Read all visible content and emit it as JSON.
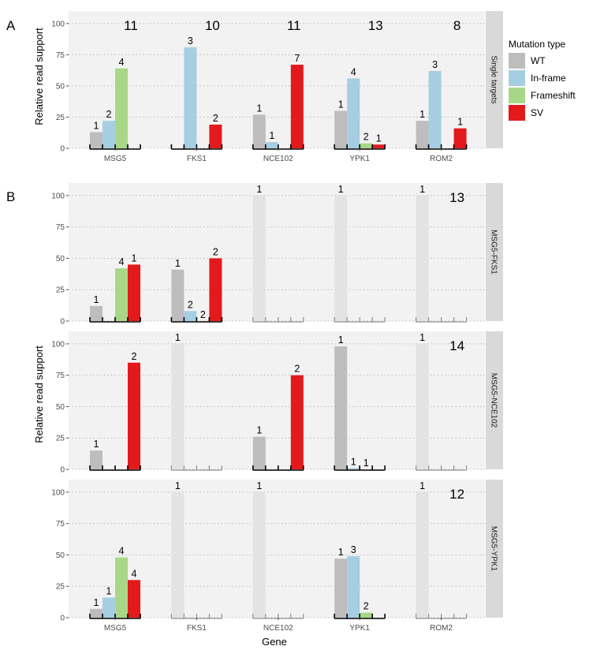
{
  "panel_letters": [
    "A",
    "B"
  ],
  "legend": {
    "title": "Mutation type",
    "items": [
      {
        "label": "WT",
        "color": "#bdbdbd"
      },
      {
        "label": "In-frame",
        "color": "#a6cee3"
      },
      {
        "label": "Frameshift",
        "color": "#a8d887"
      },
      {
        "label": "SV",
        "color": "#e31a1c"
      }
    ],
    "faded_color": "#e3e3e3"
  },
  "axis": {
    "ylabel": "Relative read support",
    "xlabel": "Gene"
  },
  "chart_data": [
    {
      "type": "bar",
      "panel": "A",
      "facet": "Single targets",
      "genes": [
        "MSG5",
        "FKS1",
        "NCE102",
        "YPK1",
        "ROM2"
      ],
      "series": [
        "WT",
        "In-frame",
        "Frameshift",
        "SV"
      ],
      "ylim": [
        0,
        110
      ],
      "yticks": [
        0,
        25,
        50,
        75,
        100
      ],
      "grid": true,
      "legend_position": "right",
      "totals": [
        11,
        10,
        11,
        13,
        8
      ],
      "bars": [
        [
          {
            "v": 13,
            "n": "1"
          },
          {
            "v": 22,
            "n": "2"
          },
          {
            "v": 64,
            "n": "4"
          },
          null
        ],
        [
          null,
          {
            "v": 81,
            "n": "3"
          },
          null,
          {
            "v": 19,
            "n": "2"
          }
        ],
        [
          {
            "v": 27,
            "n": "1"
          },
          {
            "v": 5,
            "n": "1"
          },
          null,
          {
            "v": 67,
            "n": "7"
          }
        ],
        [
          {
            "v": 30,
            "n": "1"
          },
          {
            "v": 56,
            "n": "4"
          },
          {
            "v": 4,
            "n": "2"
          },
          {
            "v": 3,
            "n": "1"
          }
        ],
        [
          {
            "v": 22,
            "n": "1"
          },
          {
            "v": 62,
            "n": "3"
          },
          null,
          {
            "v": 16,
            "n": "1"
          }
        ]
      ]
    },
    {
      "type": "bar",
      "panel": "B",
      "facet": "MSG5-FKS1",
      "genes": [
        "MSG5",
        "FKS1",
        "NCE102",
        "YPK1",
        "ROM2"
      ],
      "series": [
        "WT",
        "In-frame",
        "Frameshift",
        "SV"
      ],
      "ylim": [
        0,
        110
      ],
      "yticks": [
        0,
        25,
        50,
        75,
        100
      ],
      "grid": true,
      "totals": [
        null,
        null,
        null,
        null,
        13
      ],
      "bars": [
        [
          {
            "v": 12,
            "n": "1"
          },
          null,
          {
            "v": 42,
            "n": "4"
          },
          {
            "v": 45,
            "n": "1"
          }
        ],
        [
          {
            "v": 41,
            "n": "1"
          },
          {
            "v": 8,
            "n": "2"
          },
          {
            "v": 0,
            "n": "2"
          },
          {
            "v": 50,
            "n": "2"
          }
        ],
        [
          {
            "v": 100,
            "n": "1",
            "faded": true
          },
          null,
          null,
          null
        ],
        [
          {
            "v": 100,
            "n": "1",
            "faded": true
          },
          null,
          null,
          null
        ],
        [
          {
            "v": 100,
            "n": "1",
            "faded": true
          },
          null,
          null,
          null
        ]
      ]
    },
    {
      "type": "bar",
      "panel": "B",
      "facet": "MSG5-NCE102",
      "genes": [
        "MSG5",
        "FKS1",
        "NCE102",
        "YPK1",
        "ROM2"
      ],
      "series": [
        "WT",
        "In-frame",
        "Frameshift",
        "SV"
      ],
      "ylim": [
        0,
        110
      ],
      "yticks": [
        0,
        25,
        50,
        75,
        100
      ],
      "grid": true,
      "totals": [
        null,
        null,
        null,
        null,
        14
      ],
      "bars": [
        [
          {
            "v": 15,
            "n": "1"
          },
          null,
          null,
          {
            "v": 85,
            "n": "2"
          }
        ],
        [
          {
            "v": 100,
            "n": "1",
            "faded": true
          },
          null,
          null,
          null
        ],
        [
          {
            "v": 26,
            "n": "1"
          },
          null,
          null,
          {
            "v": 75,
            "n": "2"
          }
        ],
        [
          {
            "v": 98,
            "n": "1"
          },
          {
            "v": 1,
            "n": "1"
          },
          {
            "v": 0,
            "n": "1"
          },
          null
        ],
        [
          {
            "v": 100,
            "n": "1",
            "faded": true
          },
          null,
          null,
          null
        ]
      ]
    },
    {
      "type": "bar",
      "panel": "B",
      "facet": "MSG5-YPK1",
      "genes": [
        "MSG5",
        "FKS1",
        "NCE102",
        "YPK1",
        "ROM2"
      ],
      "series": [
        "WT",
        "In-frame",
        "Frameshift",
        "SV"
      ],
      "ylim": [
        0,
        110
      ],
      "yticks": [
        0,
        25,
        50,
        75,
        100
      ],
      "grid": true,
      "totals": [
        null,
        null,
        null,
        null,
        12
      ],
      "bars": [
        [
          {
            "v": 7,
            "n": "1"
          },
          {
            "v": 16,
            "n": "1"
          },
          {
            "v": 48,
            "n": "4"
          },
          {
            "v": 30,
            "n": "4"
          }
        ],
        [
          {
            "v": 100,
            "n": "1",
            "faded": true
          },
          null,
          null,
          null
        ],
        [
          {
            "v": 100,
            "n": "1",
            "faded": true
          },
          null,
          null,
          null
        ],
        [
          {
            "v": 47,
            "n": "1"
          },
          {
            "v": 49,
            "n": "3"
          },
          {
            "v": 4,
            "n": "2"
          },
          null
        ],
        [
          {
            "v": 100,
            "n": "1",
            "faded": true
          },
          null,
          null,
          null
        ]
      ]
    }
  ]
}
